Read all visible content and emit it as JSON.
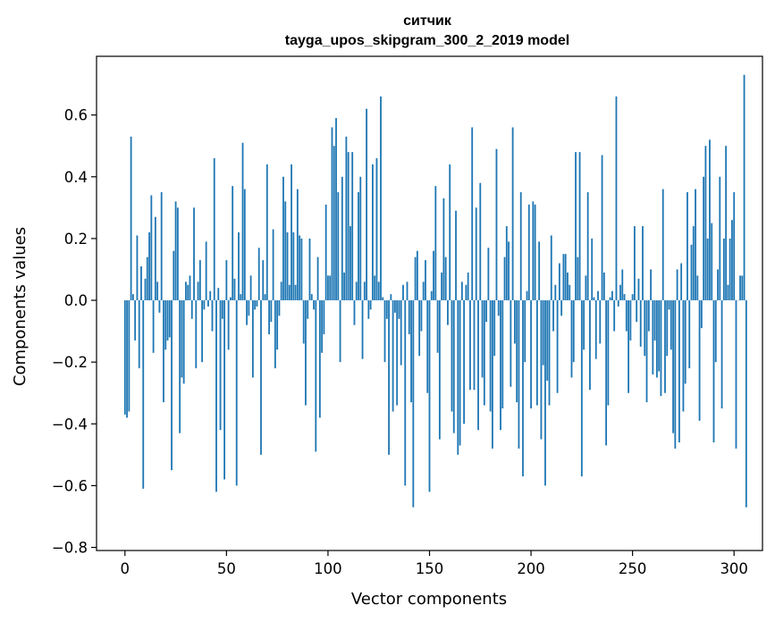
{
  "chart_data": {
    "type": "bar",
    "title": "ситчик",
    "subtitle": "tayga_upos_skipgram_300_2_2019 model",
    "xlabel": "Vector components",
    "ylabel": "Components values",
    "xlim": [
      -14,
      314
    ],
    "ylim": [
      -0.81,
      0.79
    ],
    "xticks": [
      0,
      50,
      100,
      150,
      200,
      250,
      300
    ],
    "xtick_labels": [
      "0",
      "50",
      "100",
      "150",
      "200",
      "250",
      "300"
    ],
    "yticks": [
      -0.8,
      -0.6,
      -0.4,
      -0.2,
      0.0,
      0.2,
      0.4,
      0.6
    ],
    "ytick_labels": [
      "−0.8",
      "−0.6",
      "−0.4",
      "−0.2",
      "0.0",
      "0.2",
      "0.4",
      "0.6"
    ],
    "grid": false,
    "bar_color": "#1f77b4",
    "x_start": 0,
    "values": [
      -0.37,
      -0.38,
      -0.36,
      0.53,
      0.02,
      -0.13,
      0.21,
      -0.22,
      0.11,
      -0.61,
      0.07,
      0.14,
      0.22,
      0.34,
      -0.17,
      0.27,
      0.06,
      -0.04,
      0.35,
      -0.33,
      -0.16,
      -0.13,
      -0.12,
      -0.55,
      0.16,
      0.32,
      0.3,
      -0.43,
      -0.25,
      -0.27,
      0.06,
      0.05,
      0.08,
      -0.06,
      0.3,
      -0.22,
      0.06,
      0.13,
      -0.2,
      -0.03,
      0.19,
      -0.02,
      0.03,
      -0.1,
      0.46,
      -0.62,
      0.04,
      -0.42,
      -0.06,
      -0.58,
      0.13,
      -0.16,
      0.01,
      0.37,
      0.07,
      -0.6,
      0.22,
      0.02,
      0.51,
      0.36,
      -0.08,
      -0.05,
      0.08,
      -0.25,
      -0.03,
      -0.02,
      0.17,
      -0.5,
      0.13,
      0.02,
      0.44,
      -0.11,
      -0.07,
      0.23,
      -0.22,
      -0.16,
      -0.05,
      0.06,
      0.4,
      0.32,
      0.22,
      0.05,
      0.44,
      0.22,
      0.05,
      0.36,
      0.21,
      0.2,
      -0.14,
      -0.34,
      -0.06,
      0.2,
      0.02,
      -0.03,
      -0.49,
      0.14,
      -0.38,
      -0.17,
      -0.11,
      0.31,
      0.08,
      0.08,
      0.56,
      0.5,
      0.59,
      0.35,
      -0.2,
      0.4,
      0.09,
      0.53,
      0.48,
      0.24,
      0.48,
      -0.08,
      0.06,
      0.35,
      0.4,
      -0.19,
      0.06,
      0.62,
      -0.06,
      -0.03,
      0.44,
      0.08,
      0.46,
      0.06,
      0.66,
      0.01,
      -0.2,
      -0.06,
      -0.5,
      0.02,
      -0.36,
      -0.04,
      -0.34,
      -0.06,
      -0.21,
      0.05,
      -0.6,
      0.06,
      -0.11,
      -0.33,
      -0.67,
      0.14,
      0.16,
      -0.18,
      -0.1,
      0.06,
      0.13,
      -0.3,
      -0.62,
      0.03,
      0.16,
      0.37,
      -0.17,
      -0.45,
      0.09,
      0.33,
      0.14,
      -0.08,
      0.44,
      -0.36,
      -0.43,
      0.29,
      -0.5,
      -0.47,
      0.06,
      -0.4,
      0.05,
      0.09,
      -0.29,
      0.56,
      -0.29,
      0.3,
      -0.42,
      0.38,
      -0.25,
      -0.34,
      -0.07,
      0.17,
      -0.36,
      -0.48,
      -0.18,
      0.49,
      -0.05,
      -0.42,
      -0.35,
      0.14,
      0.24,
      0.19,
      -0.28,
      0.56,
      -0.14,
      -0.33,
      -0.48,
      0.35,
      -0.57,
      -0.2,
      0.03,
      0.31,
      -0.35,
      0.32,
      0.31,
      -0.34,
      0.19,
      -0.45,
      -0.21,
      -0.6,
      -0.26,
      -0.34,
      0.21,
      -0.1,
      0.05,
      -0.3,
      0.12,
      -0.05,
      0.15,
      0.15,
      0.09,
      0.05,
      -0.25,
      -0.2,
      0.48,
      0.14,
      0.48,
      -0.57,
      -0.16,
      0.08,
      0.35,
      -0.29,
      0.2,
      0.01,
      -0.19,
      0.03,
      -0.14,
      0.47,
      0.09,
      -0.47,
      -0.34,
      0.01,
      0.03,
      -0.1,
      0.66,
      -0.02,
      0.05,
      0.1,
      0.02,
      -0.1,
      -0.3,
      -0.13,
      0.02,
      0.24,
      -0.07,
      0.07,
      -0.15,
      0.24,
      -0.18,
      -0.33,
      -0.1,
      0.1,
      -0.24,
      -0.13,
      -0.25,
      -0.23,
      -0.31,
      0.36,
      -0.3,
      -0.18,
      -0.03,
      -0.16,
      -0.43,
      -0.48,
      0.1,
      -0.46,
      0.12,
      -0.36,
      -0.27,
      0.35,
      -0.22,
      0.18,
      0.24,
      0.36,
      0.08,
      -0.39,
      -0.09,
      0.4,
      0.5,
      0.2,
      0.52,
      0.25,
      -0.46,
      -0.2,
      0.1,
      0.4,
      -0.35,
      0.2,
      0.5,
      0.05,
      0.2,
      0.26,
      0.35,
      -0.48,
      0.0,
      0.08,
      0.08,
      0.73,
      -0.67
    ]
  }
}
